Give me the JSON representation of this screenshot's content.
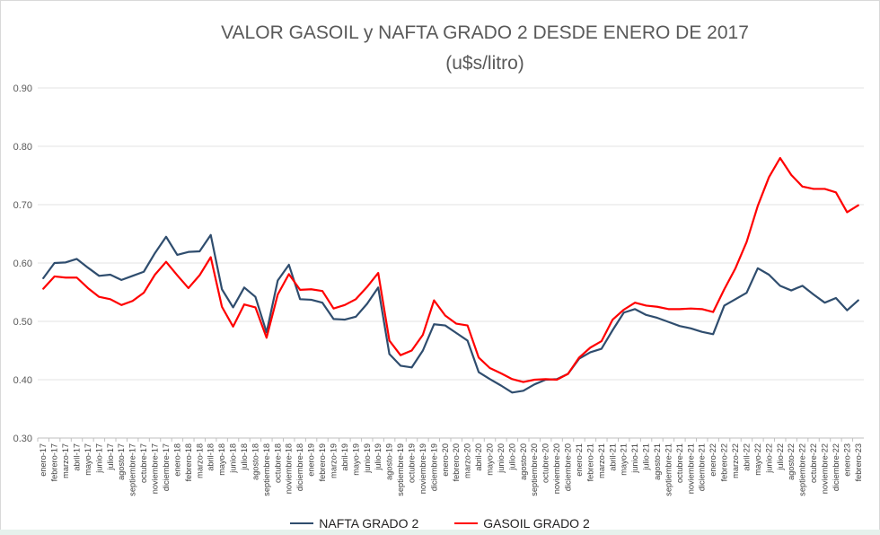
{
  "chart_data": {
    "type": "line",
    "title": "VALOR GASOIL y NAFTA GRADO 2 DESDE ENERO DE 2017",
    "subtitle": "(u$s/litro)",
    "xlabel": "",
    "ylabel": "",
    "ylim": [
      0.3,
      0.9
    ],
    "y_ticks": [
      "0.30",
      "0.40",
      "0.50",
      "0.60",
      "0.70",
      "0.80",
      "0.90"
    ],
    "grid": "horizontal",
    "legend_position": "bottom",
    "categories": [
      "enero-17",
      "febrero-17",
      "marzo-17",
      "abril-17",
      "mayo-17",
      "junio-17",
      "julio-17",
      "agosto-17",
      "septiembre-17",
      "octubre-17",
      "noviembre-17",
      "diciembre-17",
      "enero-18",
      "febrero-18",
      "marzo-18",
      "abril-18",
      "mayo-18",
      "junio-18",
      "julio-18",
      "agosto-18",
      "septiembre-18",
      "octubre-18",
      "noviembre-18",
      "diciembre-18",
      "enero-19",
      "febrero-19",
      "marzo-19",
      "abril-19",
      "mayo-19",
      "junio-19",
      "julio-19",
      "agosto-19",
      "septiembre-19",
      "octubre-19",
      "noviembre-19",
      "diciembre-19",
      "enero-20",
      "febrero-20",
      "marzo-20",
      "abril-20",
      "mayo-20",
      "junio-20",
      "julio-20",
      "agosto-20",
      "septiembre-20",
      "octubre-20",
      "noviembre-20",
      "diciembre-20",
      "enero-21",
      "febrero-21",
      "marzo-21",
      "abril-21",
      "mayo-21",
      "junio-21",
      "julio-21",
      "agosto-21",
      "septiembre-21",
      "octubre-21",
      "noviembre-21",
      "diciembre-21",
      "enero-22",
      "febrero-22",
      "marzo-22",
      "abril-22",
      "mayo-22",
      "junio-22",
      "julio-22",
      "agosto-22",
      "septiembre-22",
      "octubre-22",
      "noviembre-22",
      "diciembre-22",
      "enero-23",
      "febrero-23"
    ],
    "series": [
      {
        "name": "NAFTA GRADO 2",
        "color": "#2f4d6e",
        "values": [
          0.574,
          0.6,
          0.601,
          0.607,
          0.592,
          0.578,
          0.58,
          0.571,
          0.578,
          0.585,
          0.617,
          0.645,
          0.614,
          0.619,
          0.62,
          0.648,
          0.555,
          0.524,
          0.558,
          0.542,
          0.481,
          0.57,
          0.597,
          0.538,
          0.537,
          0.532,
          0.504,
          0.503,
          0.508,
          0.53,
          0.558,
          0.444,
          0.424,
          0.421,
          0.45,
          0.495,
          0.493,
          0.48,
          0.467,
          0.413,
          0.401,
          0.39,
          0.378,
          0.381,
          0.392,
          0.4,
          0.401,
          0.41,
          0.436,
          0.447,
          0.453,
          0.485,
          0.515,
          0.521,
          0.511,
          0.506,
          0.499,
          0.492,
          0.488,
          0.482,
          0.478,
          0.527,
          0.538,
          0.549,
          0.591,
          0.58,
          0.561,
          0.553,
          0.561,
          0.546,
          0.532,
          0.54,
          0.519,
          0.536
        ]
      },
      {
        "name": "GASOIL GRADO 2",
        "color": "#ff0000",
        "values": [
          0.556,
          0.577,
          0.575,
          0.575,
          0.557,
          0.542,
          0.538,
          0.528,
          0.535,
          0.549,
          0.58,
          0.602,
          0.579,
          0.557,
          0.579,
          0.61,
          0.525,
          0.491,
          0.529,
          0.524,
          0.472,
          0.546,
          0.581,
          0.554,
          0.555,
          0.552,
          0.522,
          0.528,
          0.538,
          0.559,
          0.583,
          0.467,
          0.442,
          0.45,
          0.477,
          0.536,
          0.51,
          0.496,
          0.493,
          0.438,
          0.42,
          0.411,
          0.401,
          0.396,
          0.4,
          0.401,
          0.4,
          0.41,
          0.438,
          0.455,
          0.466,
          0.503,
          0.52,
          0.532,
          0.527,
          0.525,
          0.521,
          0.521,
          0.522,
          0.521,
          0.516,
          0.555,
          0.591,
          0.636,
          0.698,
          0.747,
          0.78,
          0.751,
          0.731,
          0.727,
          0.727,
          0.721,
          0.687,
          0.699
        ]
      }
    ]
  }
}
